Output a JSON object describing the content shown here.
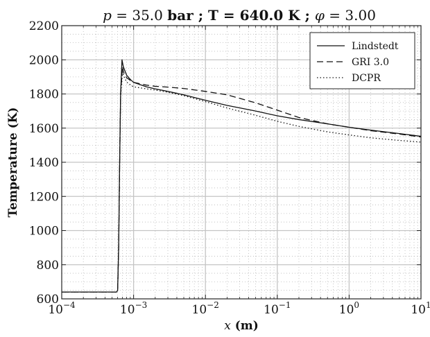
{
  "chart_data": {
    "type": "line",
    "title": {
      "p_symbol": "p",
      "eq1": " = 35.0 ",
      "unit1": "bar",
      "sep1": " ; ",
      "T_part": "T = 640.0 K",
      "sep2": " ; ",
      "phi_symbol": "φ",
      "eq2": " = 3.00"
    },
    "xlabel": {
      "symbol": "x",
      "unit": " (m)"
    },
    "ylabel": "Temperature (K)",
    "x_scale": "log",
    "xlim": [
      0.0001,
      10
    ],
    "ylim": [
      600,
      2200
    ],
    "x_ticks": [
      {
        "base": "10",
        "exp": "−4",
        "value": 0.0001
      },
      {
        "base": "10",
        "exp": "−3",
        "value": 0.001
      },
      {
        "base": "10",
        "exp": "−2",
        "value": 0.01
      },
      {
        "base": "10",
        "exp": "−1",
        "value": 0.1
      },
      {
        "base": "10",
        "exp": "0",
        "value": 1
      },
      {
        "base": "10",
        "exp": "1",
        "value": 10
      }
    ],
    "y_ticks": [
      "600",
      "800",
      "1000",
      "1200",
      "1400",
      "1600",
      "1800",
      "2000",
      "2200"
    ],
    "grid": true,
    "minor_grid": true,
    "legend": "top-right",
    "series": [
      {
        "name": "Lindstedt",
        "style": "solid",
        "points": [
          [
            0.0001,
            640
          ],
          [
            0.00058,
            640
          ],
          [
            0.0006,
            650
          ],
          [
            0.00062,
            900
          ],
          [
            0.00064,
            1400
          ],
          [
            0.00066,
            1800
          ],
          [
            0.00069,
            2000
          ],
          [
            0.00072,
            1960
          ],
          [
            0.0008,
            1910
          ],
          [
            0.0009,
            1885
          ],
          [
            0.001,
            1868
          ],
          [
            0.0015,
            1842
          ],
          [
            0.002,
            1830
          ],
          [
            0.003,
            1815
          ],
          [
            0.005,
            1795
          ],
          [
            0.01,
            1763
          ],
          [
            0.02,
            1733
          ],
          [
            0.05,
            1700
          ],
          [
            0.1,
            1672
          ],
          [
            0.2,
            1650
          ],
          [
            0.5,
            1625
          ],
          [
            1,
            1605
          ],
          [
            2,
            1588
          ],
          [
            5,
            1568
          ],
          [
            10,
            1552
          ]
        ]
      },
      {
        "name": "GRI 3.0",
        "style": "dashed",
        "points": [
          [
            0.0001,
            640
          ],
          [
            0.00058,
            640
          ],
          [
            0.0006,
            650
          ],
          [
            0.00062,
            900
          ],
          [
            0.00064,
            1400
          ],
          [
            0.00066,
            1800
          ],
          [
            0.0007,
            1960
          ],
          [
            0.00073,
            1925
          ],
          [
            0.0008,
            1895
          ],
          [
            0.0009,
            1880
          ],
          [
            0.001,
            1868
          ],
          [
            0.0015,
            1852
          ],
          [
            0.002,
            1845
          ],
          [
            0.003,
            1840
          ],
          [
            0.005,
            1832
          ],
          [
            0.01,
            1815
          ],
          [
            0.02,
            1795
          ],
          [
            0.05,
            1748
          ],
          [
            0.1,
            1705
          ],
          [
            0.2,
            1662
          ],
          [
            0.5,
            1625
          ],
          [
            1,
            1605
          ],
          [
            2,
            1585
          ],
          [
            5,
            1565
          ],
          [
            10,
            1548
          ]
        ]
      },
      {
        "name": "DCPR",
        "style": "dotted",
        "points": [
          [
            0.0001,
            640
          ],
          [
            0.00058,
            640
          ],
          [
            0.0006,
            650
          ],
          [
            0.00062,
            900
          ],
          [
            0.00064,
            1400
          ],
          [
            0.00066,
            1780
          ],
          [
            0.0007,
            1930
          ],
          [
            0.00074,
            1900
          ],
          [
            0.0008,
            1870
          ],
          [
            0.0009,
            1853
          ],
          [
            0.001,
            1842
          ],
          [
            0.0015,
            1830
          ],
          [
            0.002,
            1823
          ],
          [
            0.003,
            1810
          ],
          [
            0.005,
            1790
          ],
          [
            0.01,
            1755
          ],
          [
            0.02,
            1718
          ],
          [
            0.05,
            1675
          ],
          [
            0.1,
            1640
          ],
          [
            0.2,
            1610
          ],
          [
            0.5,
            1578
          ],
          [
            1,
            1560
          ],
          [
            2,
            1543
          ],
          [
            5,
            1528
          ],
          [
            10,
            1518
          ]
        ]
      }
    ]
  }
}
